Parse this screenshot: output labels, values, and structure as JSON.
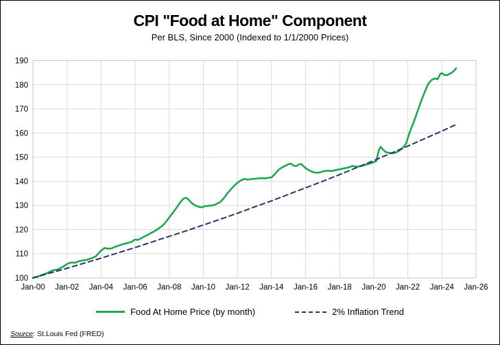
{
  "chart_data": {
    "type": "line",
    "title": "CPI \"Food at Home\" Component",
    "subtitle": "Per BLS, Since 2000 (Indexed to 1/1/2000 Prices)",
    "xlabel": "",
    "ylabel": "",
    "x_range_years": [
      0,
      26
    ],
    "ylim": [
      100,
      190
    ],
    "grid": true,
    "legend_position": "bottom",
    "grid_color": "#D9D9D9",
    "plot_border_color": "#C6C6C6",
    "y_ticks": [
      100,
      110,
      120,
      130,
      140,
      150,
      160,
      170,
      180,
      190
    ],
    "x_ticks": [
      {
        "t": 0,
        "label": "Jan-00"
      },
      {
        "t": 2,
        "label": "Jan-02"
      },
      {
        "t": 4,
        "label": "Jan-04"
      },
      {
        "t": 6,
        "label": "Jan-06"
      },
      {
        "t": 8,
        "label": "Jan-08"
      },
      {
        "t": 10,
        "label": "Jan-10"
      },
      {
        "t": 12,
        "label": "Jan-12"
      },
      {
        "t": 14,
        "label": "Jan-14"
      },
      {
        "t": 16,
        "label": "Jan-16"
      },
      {
        "t": 18,
        "label": "Jan-18"
      },
      {
        "t": 20,
        "label": "Jan-20"
      },
      {
        "t": 22,
        "label": "Jan-22"
      },
      {
        "t": 24,
        "label": "Jan-24"
      },
      {
        "t": 26,
        "label": "Jan-26"
      }
    ],
    "series": [
      {
        "name": "Food At Home Price (by month)",
        "color": "#1AA850",
        "style": "solid",
        "width": 2.6,
        "points": [
          [
            0,
            100
          ],
          [
            0.2,
            100.4
          ],
          [
            0.4,
            100.9
          ],
          [
            0.6,
            101.4
          ],
          [
            0.8,
            101.9
          ],
          [
            1,
            102.6
          ],
          [
            1.2,
            103.2
          ],
          [
            1.4,
            103.4
          ],
          [
            1.6,
            104
          ],
          [
            1.8,
            104.8
          ],
          [
            1.95,
            105.5
          ],
          [
            2.1,
            106.1
          ],
          [
            2.3,
            106.4
          ],
          [
            2.5,
            106.3
          ],
          [
            2.7,
            106.9
          ],
          [
            2.9,
            107.2
          ],
          [
            3.1,
            107.4
          ],
          [
            3.3,
            107.8
          ],
          [
            3.5,
            108.3
          ],
          [
            3.7,
            109
          ],
          [
            3.85,
            110.2
          ],
          [
            4,
            111.3
          ],
          [
            4.2,
            112.4
          ],
          [
            4.4,
            112.1
          ],
          [
            4.6,
            112.2
          ],
          [
            4.8,
            112.8
          ],
          [
            5,
            113.3
          ],
          [
            5.2,
            113.8
          ],
          [
            5.4,
            114.2
          ],
          [
            5.6,
            114.5
          ],
          [
            5.8,
            115
          ],
          [
            6,
            115.9
          ],
          [
            6.15,
            115.7
          ],
          [
            6.3,
            116.2
          ],
          [
            6.5,
            117
          ],
          [
            6.7,
            117.7
          ],
          [
            6.9,
            118.5
          ],
          [
            7.1,
            119.2
          ],
          [
            7.3,
            120.1
          ],
          [
            7.5,
            121.1
          ],
          [
            7.7,
            122.3
          ],
          [
            7.9,
            124.1
          ],
          [
            8.1,
            126
          ],
          [
            8.3,
            127.8
          ],
          [
            8.5,
            129.8
          ],
          [
            8.7,
            131.8
          ],
          [
            8.85,
            132.9
          ],
          [
            9,
            133.2
          ],
          [
            9.15,
            132.3
          ],
          [
            9.3,
            131.1
          ],
          [
            9.5,
            130.1
          ],
          [
            9.7,
            129.5
          ],
          [
            9.9,
            129.2
          ],
          [
            10.1,
            129.7
          ],
          [
            10.35,
            129.9
          ],
          [
            10.6,
            130.1
          ],
          [
            10.8,
            130.7
          ],
          [
            11,
            131.5
          ],
          [
            11.2,
            133
          ],
          [
            11.4,
            134.9
          ],
          [
            11.6,
            136.6
          ],
          [
            11.8,
            138.1
          ],
          [
            12,
            139.4
          ],
          [
            12.2,
            140.4
          ],
          [
            12.4,
            141
          ],
          [
            12.6,
            140.7
          ],
          [
            12.85,
            141
          ],
          [
            13.1,
            141.1
          ],
          [
            13.35,
            141.3
          ],
          [
            13.6,
            141.2
          ],
          [
            13.85,
            141.5
          ],
          [
            14,
            141.6
          ],
          [
            14.2,
            143
          ],
          [
            14.4,
            144.7
          ],
          [
            14.6,
            145.7
          ],
          [
            14.8,
            146.4
          ],
          [
            15,
            147.1
          ],
          [
            15.15,
            147.3
          ],
          [
            15.3,
            146.5
          ],
          [
            15.45,
            146.3
          ],
          [
            15.6,
            147
          ],
          [
            15.75,
            147.2
          ],
          [
            15.9,
            146.1
          ],
          [
            16.05,
            145.2
          ],
          [
            16.25,
            144.4
          ],
          [
            16.45,
            143.8
          ],
          [
            16.65,
            143.5
          ],
          [
            16.85,
            143.7
          ],
          [
            17.05,
            144.2
          ],
          [
            17.3,
            144.4
          ],
          [
            17.55,
            144.3
          ],
          [
            17.8,
            144.7
          ],
          [
            18,
            145
          ],
          [
            18.3,
            145.4
          ],
          [
            18.55,
            145.8
          ],
          [
            18.75,
            146.4
          ],
          [
            18.95,
            146
          ],
          [
            19.2,
            146.2
          ],
          [
            19.5,
            146.8
          ],
          [
            19.8,
            147.4
          ],
          [
            20,
            147.9
          ],
          [
            20.15,
            148.4
          ],
          [
            20.3,
            152.9
          ],
          [
            20.4,
            154.3
          ],
          [
            20.55,
            153.1
          ],
          [
            20.7,
            152.1
          ],
          [
            20.9,
            151.8
          ],
          [
            21.1,
            151.6
          ],
          [
            21.3,
            151.9
          ],
          [
            21.5,
            152.7
          ],
          [
            21.7,
            153.9
          ],
          [
            21.9,
            155.6
          ],
          [
            22.05,
            159.2
          ],
          [
            22.2,
            162
          ],
          [
            22.4,
            165.6
          ],
          [
            22.6,
            169.6
          ],
          [
            22.8,
            173.6
          ],
          [
            23,
            177.2
          ],
          [
            23.2,
            180.4
          ],
          [
            23.4,
            182
          ],
          [
            23.6,
            182.6
          ],
          [
            23.75,
            182.3
          ],
          [
            23.9,
            184.4
          ],
          [
            24,
            184.8
          ],
          [
            24.12,
            184.1
          ],
          [
            24.28,
            183.9
          ],
          [
            24.45,
            184.5
          ],
          [
            24.6,
            185.1
          ],
          [
            24.72,
            185.9
          ],
          [
            24.83,
            186.8
          ]
        ]
      },
      {
        "name": "2% Inflation Trend",
        "color": "#1F3864",
        "style": "dashed",
        "width": 2,
        "points": [
          [
            0,
            100
          ],
          [
            1,
            102
          ],
          [
            2,
            104
          ],
          [
            3,
            106.1
          ],
          [
            4,
            108.2
          ],
          [
            5,
            110.4
          ],
          [
            6,
            112.6
          ],
          [
            7,
            114.9
          ],
          [
            8,
            117.2
          ],
          [
            9,
            119.5
          ],
          [
            10,
            121.9
          ],
          [
            11,
            124.3
          ],
          [
            12,
            126.8
          ],
          [
            13,
            129.4
          ],
          [
            14,
            131.9
          ],
          [
            15,
            134.6
          ],
          [
            16,
            137.3
          ],
          [
            17,
            140
          ],
          [
            18,
            142.8
          ],
          [
            19,
            145.7
          ],
          [
            20,
            148.6
          ],
          [
            21,
            151.6
          ],
          [
            22,
            154.6
          ],
          [
            23,
            157.7
          ],
          [
            24,
            160.8
          ],
          [
            24.83,
            163.5
          ]
        ]
      }
    ]
  },
  "footer": {
    "source_label": "Source",
    "source_text": ": St.Louis Fed (FRED)"
  }
}
